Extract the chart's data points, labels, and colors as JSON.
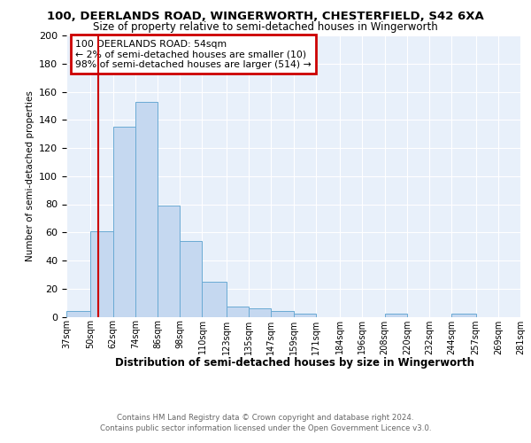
{
  "title1": "100, DEERLANDS ROAD, WINGERWORTH, CHESTERFIELD, S42 6XA",
  "title2": "Size of property relative to semi-detached houses in Wingerworth",
  "xlabel": "Distribution of semi-detached houses by size in Wingerworth",
  "ylabel": "Number of semi-detached properties",
  "footer1": "Contains HM Land Registry data © Crown copyright and database right 2024.",
  "footer2": "Contains public sector information licensed under the Open Government Licence v3.0.",
  "annotation_title": "100 DEERLANDS ROAD: 54sqm",
  "annotation_line1": "← 2% of semi-detached houses are smaller (10)",
  "annotation_line2": "98% of semi-detached houses are larger (514) →",
  "bar_values": [
    4,
    61,
    135,
    153,
    79,
    54,
    25,
    7,
    6,
    4,
    2,
    0,
    0,
    0,
    2,
    0,
    0,
    2,
    0,
    0
  ],
  "bin_labels": [
    "37sqm",
    "50sqm",
    "62sqm",
    "74sqm",
    "86sqm",
    "98sqm",
    "110sqm",
    "123sqm",
    "135sqm",
    "147sqm",
    "159sqm",
    "171sqm",
    "184sqm",
    "196sqm",
    "208sqm",
    "220sqm",
    "232sqm",
    "244sqm",
    "257sqm",
    "269sqm",
    "281sqm"
  ],
  "bin_edges": [
    37,
    50,
    62,
    74,
    86,
    98,
    110,
    123,
    135,
    147,
    159,
    171,
    184,
    196,
    208,
    220,
    232,
    244,
    257,
    269,
    281
  ],
  "bar_color": "#c5d8f0",
  "bar_edge_color": "#6aaad4",
  "red_line_x": 54,
  "ylim": [
    0,
    200
  ],
  "yticks": [
    0,
    20,
    40,
    60,
    80,
    100,
    120,
    140,
    160,
    180,
    200
  ],
  "background_color": "#e8f0fa",
  "annotation_box_color": "#ffffff",
  "annotation_box_edge": "#cc0000",
  "red_line_color": "#cc0000"
}
